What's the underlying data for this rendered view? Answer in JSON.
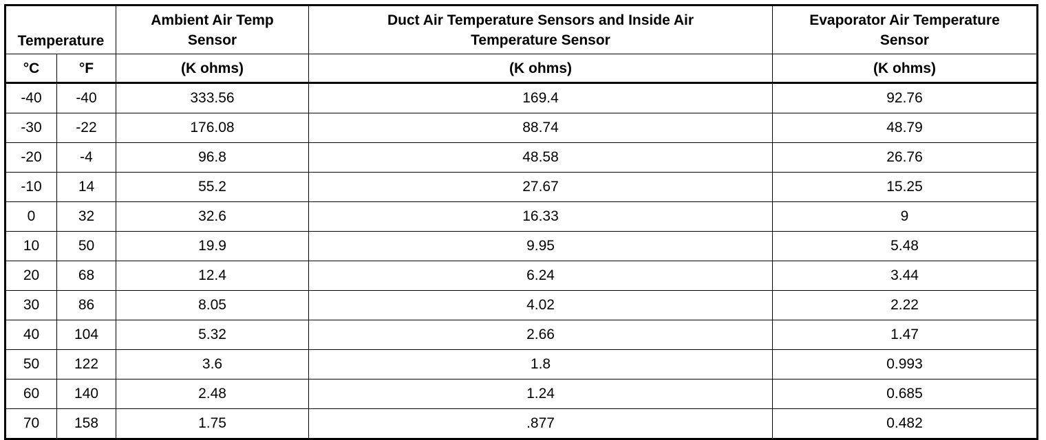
{
  "table": {
    "header": {
      "group": "Temperature",
      "columns": [
        "Ambient Air Temp Sensor",
        "Duct Air Temperature Sensors and Inside Air Temperature Sensor",
        "Evaporator Air Temperature Sensor"
      ],
      "units": [
        "°C",
        "°F",
        "(K ohms)",
        "(K ohms)",
        "(K ohms)"
      ]
    },
    "rows": [
      [
        "-40",
        "-40",
        "333.56",
        "169.4",
        "92.76"
      ],
      [
        "-30",
        "-22",
        "176.08",
        "88.74",
        "48.79"
      ],
      [
        "-20",
        "-4",
        "96.8",
        "48.58",
        "26.76"
      ],
      [
        "-10",
        "14",
        "55.2",
        "27.67",
        "15.25"
      ],
      [
        "0",
        "32",
        "32.6",
        "16.33",
        "9"
      ],
      [
        "10",
        "50",
        "19.9",
        "9.95",
        "5.48"
      ],
      [
        "20",
        "68",
        "12.4",
        "6.24",
        "3.44"
      ],
      [
        "30",
        "86",
        "8.05",
        "4.02",
        "2.22"
      ],
      [
        "40",
        "104",
        "5.32",
        "2.66",
        "1.47"
      ],
      [
        "50",
        "122",
        "3.6",
        "1.8",
        "0.993"
      ],
      [
        "60",
        "140",
        "2.48",
        "1.24",
        "0.685"
      ],
      [
        "70",
        "158",
        "1.75",
        ".877",
        "0.482"
      ]
    ]
  }
}
